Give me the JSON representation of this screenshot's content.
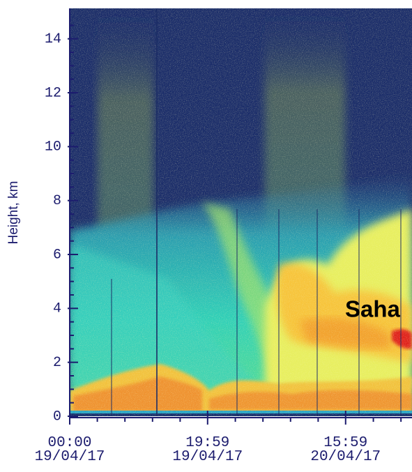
{
  "chart_data": {
    "type": "heatmap",
    "ylabel": "Height, km",
    "annotation": "Saha",
    "ylim": [
      0,
      15
    ],
    "yticks": [
      0,
      2,
      4,
      6,
      8,
      10,
      12,
      14
    ],
    "yminorticks": [
      0.5,
      1,
      1.5,
      2.5,
      3,
      3.5,
      4.5,
      5,
      5.5,
      6.5,
      7,
      7.5,
      8.5,
      9,
      9.5,
      10.5,
      11,
      11.5,
      12.5,
      13,
      13.5,
      14.5
    ],
    "xlim": [
      0,
      49.6
    ],
    "xticks": [
      {
        "value": 0,
        "label": "00:00\n19/04/17"
      },
      {
        "value": 19.98,
        "label": "19:59\n19/04/17"
      },
      {
        "value": 39.98,
        "label": "15:59\n20/04/17"
      }
    ],
    "xminorticks": [
      4,
      8,
      12,
      16,
      24,
      28,
      32,
      36,
      44,
      48
    ],
    "axis_color": "#1c1c6e"
  }
}
